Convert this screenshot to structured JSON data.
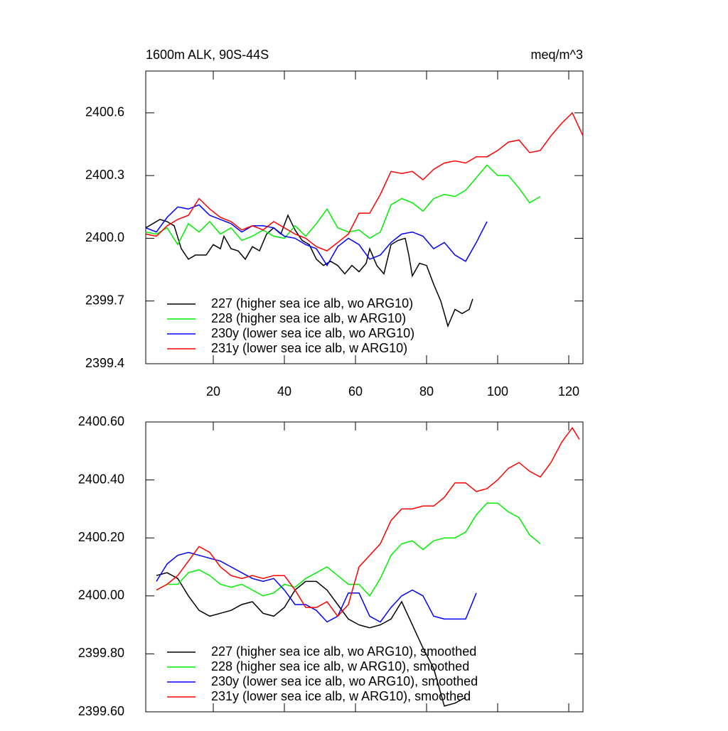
{
  "chart_data": [
    {
      "type": "line",
      "title": "1600m ALK, 90S-44S",
      "subtitle": "meq/m^3",
      "xlim": [
        1,
        124
      ],
      "xticks": [
        20,
        40,
        60,
        80,
        100,
        120
      ],
      "show_xtick_labels": true,
      "ylim": [
        2399.4,
        2400.8
      ],
      "yticks": [
        {
          "value": 2399.4,
          "label": "2399.4"
        },
        {
          "value": 2399.7,
          "label": "2399.7"
        },
        {
          "value": 2400,
          "label": "2400.0"
        },
        {
          "value": 2400.3,
          "label": "2400.3"
        },
        {
          "value": 2400.6,
          "label": "2400.6"
        }
      ],
      "legend": "lower left",
      "series": [
        {
          "name": "227 (higher sea ice alb, wo ARG10)",
          "color": "#000000",
          "x": [
            1,
            3,
            5,
            7,
            9,
            11,
            13,
            15,
            18,
            20,
            22,
            23,
            25,
            27,
            29,
            31,
            33,
            35,
            37,
            39,
            41,
            43,
            45,
            47,
            49,
            51,
            53,
            55,
            57,
            59,
            61,
            63,
            64,
            66,
            68,
            70,
            72,
            74,
            75,
            76,
            78,
            80,
            82,
            84,
            86,
            88,
            90,
            92,
            93
          ],
          "values": [
            2400.05,
            2400.07,
            2400.09,
            2400.08,
            2400.06,
            2399.95,
            2399.9,
            2399.92,
            2399.92,
            2399.97,
            2399.95,
            2400.01,
            2399.95,
            2399.94,
            2399.9,
            2399.96,
            2399.94,
            2400.02,
            2400.05,
            2400.02,
            2400.11,
            2400.04,
            2399.99,
            2399.97,
            2399.9,
            2399.87,
            2399.89,
            2399.87,
            2399.83,
            2399.87,
            2399.84,
            2399.88,
            2399.95,
            2399.87,
            2399.83,
            2399.97,
            2399.99,
            2400.0,
            2399.92,
            2399.82,
            2399.88,
            2399.87,
            2399.78,
            2399.7,
            2399.58,
            2399.66,
            2399.64,
            2399.66,
            2399.71
          ]
        },
        {
          "name": "228 (higher sea ice alb, w ARG10)",
          "color": "#00ee00",
          "x": [
            1,
            4,
            7,
            10,
            13,
            16,
            19,
            22,
            25,
            28,
            31,
            34,
            37,
            40,
            43,
            46,
            49,
            52,
            55,
            58,
            61,
            64,
            67,
            70,
            73,
            76,
            79,
            82,
            85,
            88,
            91,
            94,
            97,
            100,
            103,
            106,
            109,
            112
          ],
          "values": [
            2400.03,
            2400.02,
            2400.05,
            2399.97,
            2400.07,
            2400.03,
            2400.08,
            2400.02,
            2400.05,
            2399.99,
            2400.01,
            2400.04,
            2400.01,
            2400.0,
            2400.06,
            2400.01,
            2400.07,
            2400.14,
            2400.05,
            2400.03,
            2400.04,
            2400.0,
            2400.03,
            2400.16,
            2400.19,
            2400.17,
            2400.13,
            2400.19,
            2400.21,
            2400.2,
            2400.23,
            2400.29,
            2400.35,
            2400.3,
            2400.3,
            2400.24,
            2400.17,
            2400.2
          ]
        },
        {
          "name": "230y (lower sea ice alb, wo ARG10)",
          "color": "#0000ff",
          "x": [
            1,
            4,
            7,
            10,
            13,
            16,
            19,
            22,
            25,
            28,
            31,
            34,
            37,
            40,
            43,
            46,
            49,
            52,
            55,
            58,
            61,
            64,
            67,
            70,
            73,
            76,
            79,
            82,
            85,
            88,
            91,
            94,
            97
          ],
          "values": [
            2400.05,
            2400.03,
            2400.1,
            2400.15,
            2400.14,
            2400.16,
            2400.11,
            2400.09,
            2400.07,
            2400.03,
            2400.06,
            2400.06,
            2400.05,
            2400.01,
            2400.0,
            2399.97,
            2399.95,
            2399.87,
            2399.96,
            2400.0,
            2399.97,
            2399.9,
            2399.92,
            2399.98,
            2400.02,
            2400.03,
            2400.01,
            2399.95,
            2399.98,
            2399.92,
            2399.89,
            2399.98,
            2400.08
          ]
        },
        {
          "name": "231y (lower sea ice alb, w ARG10)",
          "color": "#ff0000",
          "x": [
            1,
            4,
            7,
            10,
            13,
            16,
            19,
            22,
            25,
            28,
            31,
            34,
            37,
            40,
            43,
            46,
            49,
            52,
            55,
            58,
            61,
            64,
            67,
            70,
            73,
            76,
            79,
            82,
            85,
            88,
            91,
            94,
            97,
            100,
            103,
            106,
            109,
            112,
            115,
            118,
            121,
            124
          ],
          "values": [
            2400.02,
            2400.01,
            2400.06,
            2400.09,
            2400.11,
            2400.19,
            2400.14,
            2400.1,
            2400.08,
            2400.04,
            2400.06,
            2400.04,
            2400.08,
            2400.05,
            2400.02,
            2400.0,
            2399.96,
            2399.94,
            2399.98,
            2400.02,
            2400.12,
            2400.12,
            2400.21,
            2400.32,
            2400.31,
            2400.32,
            2400.28,
            2400.33,
            2400.36,
            2400.37,
            2400.36,
            2400.39,
            2400.39,
            2400.42,
            2400.46,
            2400.47,
            2400.41,
            2400.42,
            2400.49,
            2400.55,
            2400.6,
            2400.49
          ]
        }
      ]
    },
    {
      "type": "line",
      "xlim": [
        1,
        124
      ],
      "xticks": [
        20,
        40,
        60,
        80,
        100,
        120
      ],
      "show_xtick_labels": false,
      "ylim": [
        2399.6,
        2400.6
      ],
      "yticks": [
        {
          "value": 2399.6,
          "label": "2399.60"
        },
        {
          "value": 2399.8,
          "label": "2399.80"
        },
        {
          "value": 2400,
          "label": "2400.00"
        },
        {
          "value": 2400.2,
          "label": "2400.20"
        },
        {
          "value": 2400.4,
          "label": "2400.40"
        },
        {
          "value": 2400.6,
          "label": "2400.60"
        }
      ],
      "legend": "lower left",
      "series": [
        {
          "name": "227 (higher sea ice alb, wo ARG10), smoothed",
          "color": "#000000",
          "x": [
            4,
            7,
            10,
            13,
            16,
            19,
            22,
            25,
            28,
            31,
            34,
            37,
            40,
            43,
            46,
            49,
            52,
            55,
            58,
            61,
            64,
            67,
            70,
            73,
            76,
            79,
            82,
            85,
            88,
            91
          ],
          "values": [
            2400.07,
            2400.08,
            2400.06,
            2400.0,
            2399.95,
            2399.93,
            2399.94,
            2399.95,
            2399.97,
            2399.98,
            2399.94,
            2399.93,
            2399.96,
            2400.02,
            2400.05,
            2400.05,
            2400.02,
            2399.97,
            2399.92,
            2399.9,
            2399.89,
            2399.9,
            2399.92,
            2399.98,
            2399.9,
            2399.82,
            2399.75,
            2399.62,
            2399.63,
            2399.65
          ]
        },
        {
          "name": "228 (higher sea ice alb, w ARG10), smoothed",
          "color": "#00ee00",
          "x": [
            4,
            7,
            10,
            13,
            16,
            19,
            22,
            25,
            28,
            31,
            34,
            37,
            40,
            43,
            46,
            49,
            52,
            55,
            58,
            61,
            64,
            67,
            70,
            73,
            76,
            79,
            82,
            85,
            88,
            91,
            94,
            97,
            100,
            103,
            106,
            109,
            112
          ],
          "values": [
            2400.02,
            2400.04,
            2400.04,
            2400.08,
            2400.09,
            2400.07,
            2400.04,
            2400.03,
            2400.04,
            2400.02,
            2400.0,
            2400.01,
            2400.04,
            2400.03,
            2400.06,
            2400.08,
            2400.1,
            2400.07,
            2400.04,
            2400.04,
            2400.0,
            2400.06,
            2400.14,
            2400.18,
            2400.19,
            2400.16,
            2400.19,
            2400.2,
            2400.2,
            2400.22,
            2400.28,
            2400.32,
            2400.32,
            2400.29,
            2400.27,
            2400.21,
            2400.18
          ]
        },
        {
          "name": "230y (lower sea ice alb, wo ARG10), smoothed",
          "color": "#0000ff",
          "x": [
            4,
            7,
            10,
            13,
            16,
            19,
            22,
            25,
            28,
            31,
            34,
            37,
            40,
            43,
            46,
            49,
            52,
            55,
            58,
            61,
            64,
            67,
            70,
            73,
            76,
            79,
            82,
            85,
            88,
            91,
            94
          ],
          "values": [
            2400.05,
            2400.11,
            2400.14,
            2400.15,
            2400.14,
            2400.13,
            2400.12,
            2400.1,
            2400.08,
            2400.06,
            2400.05,
            2400.06,
            2400.02,
            2399.97,
            2399.97,
            2399.95,
            2399.91,
            2399.93,
            2400.01,
            2400.01,
            2399.93,
            2399.91,
            2399.96,
            2400.0,
            2400.02,
            2400.0,
            2399.93,
            2399.92,
            2399.92,
            2399.92,
            2400.01
          ]
        },
        {
          "name": "231y (lower sea ice alb, w ARG10), smoothed",
          "color": "#ff0000",
          "x": [
            4,
            7,
            10,
            13,
            16,
            19,
            22,
            25,
            28,
            31,
            34,
            37,
            40,
            43,
            46,
            49,
            52,
            55,
            58,
            61,
            64,
            67,
            70,
            73,
            76,
            79,
            82,
            85,
            88,
            91,
            94,
            97,
            100,
            103,
            106,
            109,
            112,
            115,
            118,
            121,
            123
          ],
          "values": [
            2400.02,
            2400.04,
            2400.07,
            2400.12,
            2400.17,
            2400.15,
            2400.1,
            2400.07,
            2400.06,
            2400.07,
            2400.06,
            2400.07,
            2400.07,
            2400.02,
            2399.96,
            2399.96,
            2399.98,
            2399.93,
            2399.97,
            2400.1,
            2400.14,
            2400.18,
            2400.26,
            2400.3,
            2400.3,
            2400.31,
            2400.31,
            2400.34,
            2400.39,
            2400.39,
            2400.36,
            2400.37,
            2400.4,
            2400.44,
            2400.46,
            2400.43,
            2400.41,
            2400.46,
            2400.53,
            2400.58,
            2400.54
          ]
        }
      ]
    }
  ]
}
